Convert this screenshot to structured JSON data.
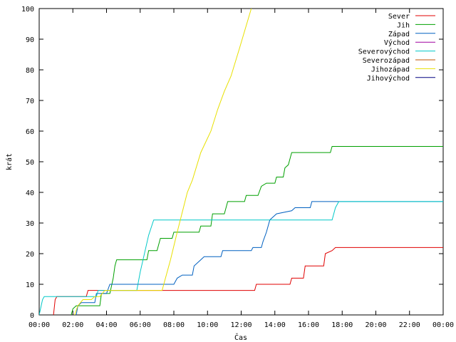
{
  "chart_data": {
    "type": "line",
    "xlabel": "Čas",
    "ylabel": "krát",
    "xlim": [
      0,
      24
    ],
    "ylim": [
      0,
      100
    ],
    "x_ticks": [
      "00:00",
      "02:00",
      "04:00",
      "06:00",
      "08:00",
      "10:00",
      "12:00",
      "14:00",
      "16:00",
      "18:00",
      "20:00",
      "22:00",
      "00:00"
    ],
    "y_ticks": [
      "0",
      "10",
      "20",
      "30",
      "40",
      "50",
      "60",
      "70",
      "80",
      "90",
      "100"
    ],
    "grid": false,
    "legend_position": "top-right",
    "x_unit": "hours",
    "series": [
      {
        "name": "Sever",
        "color": "#e00000",
        "points": [
          [
            0.85,
            0
          ],
          [
            0.95,
            5
          ],
          [
            1.05,
            6
          ],
          [
            2.8,
            6
          ],
          [
            2.9,
            8
          ],
          [
            7.4,
            8
          ],
          [
            12.8,
            8
          ],
          [
            12.9,
            10
          ],
          [
            14.9,
            10
          ],
          [
            15.0,
            12
          ],
          [
            15.7,
            12
          ],
          [
            15.8,
            16
          ],
          [
            16.9,
            16
          ],
          [
            17.0,
            20
          ],
          [
            17.4,
            21
          ],
          [
            17.6,
            22
          ],
          [
            24,
            22
          ]
        ]
      },
      {
        "name": "Jih",
        "color": "#00a000",
        "points": [
          [
            1.9,
            0
          ],
          [
            2.0,
            2
          ],
          [
            2.2,
            3
          ],
          [
            3.6,
            3
          ],
          [
            3.7,
            7
          ],
          [
            4.2,
            7
          ],
          [
            4.4,
            12
          ],
          [
            4.5,
            16
          ],
          [
            4.6,
            18
          ],
          [
            6.4,
            18
          ],
          [
            6.5,
            21
          ],
          [
            7.0,
            21
          ],
          [
            7.2,
            25
          ],
          [
            7.9,
            25
          ],
          [
            8.0,
            27
          ],
          [
            9.5,
            27
          ],
          [
            9.6,
            29
          ],
          [
            10.2,
            29
          ],
          [
            10.3,
            33
          ],
          [
            11.0,
            33
          ],
          [
            11.2,
            37
          ],
          [
            12.2,
            37
          ],
          [
            12.3,
            39
          ],
          [
            13.0,
            39
          ],
          [
            13.2,
            42
          ],
          [
            13.5,
            43
          ],
          [
            14.0,
            43
          ],
          [
            14.1,
            45
          ],
          [
            14.5,
            45
          ],
          [
            14.6,
            48
          ],
          [
            14.8,
            49
          ],
          [
            15.0,
            53
          ],
          [
            17.3,
            53
          ],
          [
            17.4,
            55
          ],
          [
            24,
            55
          ]
        ]
      },
      {
        "name": "Západ",
        "color": "#0060c0",
        "points": [
          [
            2.2,
            0
          ],
          [
            2.3,
            3
          ],
          [
            2.5,
            4
          ],
          [
            3.3,
            4
          ],
          [
            3.4,
            7
          ],
          [
            4.0,
            7
          ],
          [
            4.2,
            10
          ],
          [
            8.0,
            10
          ],
          [
            8.2,
            12
          ],
          [
            8.5,
            13
          ],
          [
            9.1,
            13
          ],
          [
            9.2,
            16
          ],
          [
            9.6,
            18
          ],
          [
            9.8,
            19
          ],
          [
            10.8,
            19
          ],
          [
            10.9,
            21
          ],
          [
            12.6,
            21
          ],
          [
            12.7,
            22
          ],
          [
            13.2,
            22
          ],
          [
            13.3,
            24
          ],
          [
            13.5,
            27
          ],
          [
            13.7,
            31
          ],
          [
            14.1,
            33
          ],
          [
            15.0,
            34
          ],
          [
            15.2,
            35
          ],
          [
            16.1,
            35
          ],
          [
            16.2,
            37
          ],
          [
            24,
            37
          ]
        ]
      },
      {
        "name": "Východ",
        "color": "#a000a0",
        "points": []
      },
      {
        "name": "Severovýchod",
        "color": "#00c8c8",
        "points": [
          [
            0,
            0
          ],
          [
            0.2,
            5
          ],
          [
            0.3,
            6
          ],
          [
            3.4,
            6
          ],
          [
            3.5,
            8
          ],
          [
            5.8,
            8
          ],
          [
            6.0,
            14
          ],
          [
            6.5,
            26
          ],
          [
            6.8,
            31
          ],
          [
            17.4,
            31
          ],
          [
            17.6,
            35
          ],
          [
            17.8,
            37
          ],
          [
            24,
            37
          ]
        ]
      },
      {
        "name": "Severozápad",
        "color": "#c05000",
        "points": []
      },
      {
        "name": "Jihozápad",
        "color": "#e8e000",
        "points": [
          [
            2.1,
            0
          ],
          [
            2.3,
            3
          ],
          [
            2.6,
            5
          ],
          [
            3.1,
            5
          ],
          [
            3.3,
            6
          ],
          [
            3.6,
            6
          ],
          [
            3.9,
            8
          ],
          [
            7.3,
            8
          ],
          [
            7.8,
            18
          ],
          [
            8.2,
            27
          ],
          [
            8.8,
            40
          ],
          [
            9.1,
            44
          ],
          [
            9.6,
            53
          ],
          [
            10.2,
            60
          ],
          [
            10.6,
            67
          ],
          [
            11.0,
            73
          ],
          [
            11.4,
            78
          ],
          [
            11.9,
            87
          ],
          [
            12.6,
            100
          ]
        ]
      },
      {
        "name": "Jihovýchod",
        "color": "#000080",
        "points": []
      }
    ]
  }
}
